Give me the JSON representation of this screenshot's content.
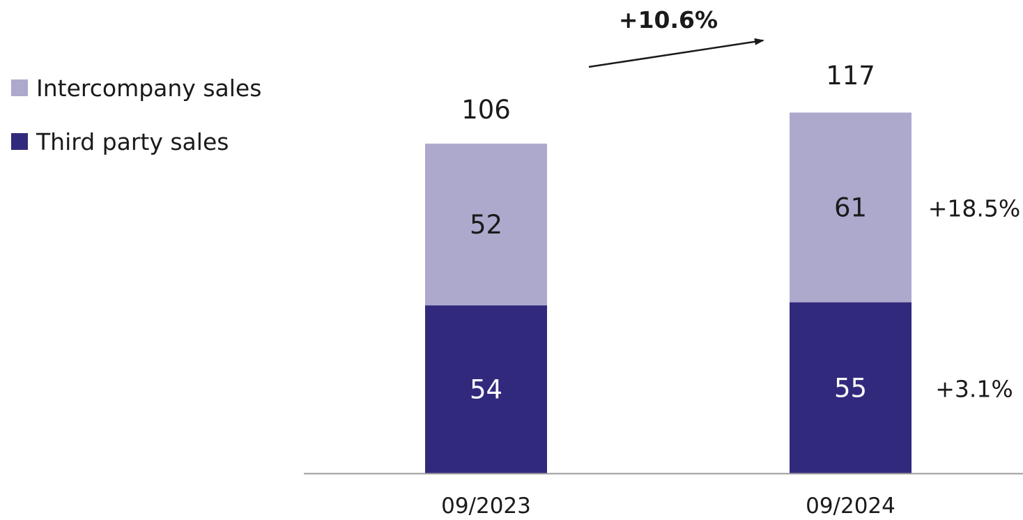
{
  "colors": {
    "intercompany": "#ADA9CD",
    "third_party": "#312A7C",
    "axis": "#999999",
    "text": "#1a1a1a",
    "bar_label_light": "#ffffff",
    "bar_label_dark": "#1a1a1a"
  },
  "legend": [
    {
      "label": "Intercompany sales",
      "color_key": "intercompany"
    },
    {
      "label": "Third party sales",
      "color_key": "third_party"
    }
  ],
  "chart_data": {
    "type": "bar",
    "stacked": true,
    "categories": [
      "09/2023",
      "09/2024"
    ],
    "series": [
      {
        "name": "Third party sales",
        "values": [
          54,
          55
        ]
      },
      {
        "name": "Intercompany sales",
        "values": [
          52,
          61
        ]
      }
    ],
    "totals": [
      106,
      117
    ],
    "ylim": [
      0,
      117
    ],
    "grid": false,
    "legend_position": "top-left",
    "annotations": {
      "total_change": "+10.6%",
      "series_changes": [
        {
          "series": "Intercompany sales",
          "label": "+18.5%"
        },
        {
          "series": "Third party sales",
          "label": "+3.1%"
        }
      ]
    }
  }
}
